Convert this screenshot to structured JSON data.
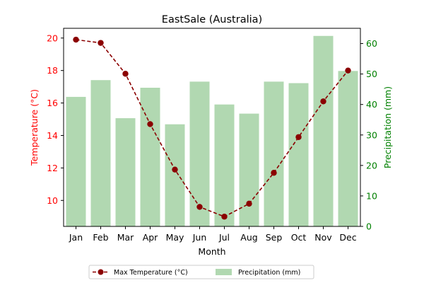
{
  "chart_data": {
    "type": "bar+line",
    "title": "EastSale (Australia)",
    "xlabel": "Month",
    "ylabel_left": "Temperature (°C)",
    "ylabel_right": "Precipitation (mm)",
    "categories": [
      "Jan",
      "Feb",
      "Mar",
      "Apr",
      "May",
      "Jun",
      "Jul",
      "Aug",
      "Sep",
      "Oct",
      "Nov",
      "Dec"
    ],
    "y_left_range": [
      8.4,
      20.6
    ],
    "y_left_ticks": [
      10,
      12,
      14,
      16,
      18,
      20
    ],
    "y_right_range": [
      0,
      65
    ],
    "y_right_ticks": [
      0,
      10,
      20,
      30,
      40,
      50,
      60
    ],
    "series": [
      {
        "name": "Max Temperature (°C)",
        "kind": "line",
        "axis": "left",
        "color": "#8b0000",
        "style": "dashed",
        "marker": "circle",
        "values": [
          19.9,
          19.7,
          17.8,
          14.7,
          11.9,
          9.6,
          9.0,
          9.8,
          11.7,
          13.9,
          16.1,
          18.0
        ]
      },
      {
        "name": "Precipitation (mm)",
        "kind": "bar",
        "axis": "right",
        "color": "#b1d8b1",
        "values": [
          42.5,
          48.0,
          35.5,
          45.5,
          33.5,
          47.5,
          40.0,
          37.0,
          47.5,
          47.0,
          62.5,
          51.0
        ]
      }
    ],
    "left_axis_color": "#ff0000",
    "right_axis_color": "#008000",
    "grid": false,
    "legend": {
      "placement": "bottom-center",
      "entries": [
        "Max Temperature (°C)",
        "Precipitation (mm)"
      ]
    }
  }
}
